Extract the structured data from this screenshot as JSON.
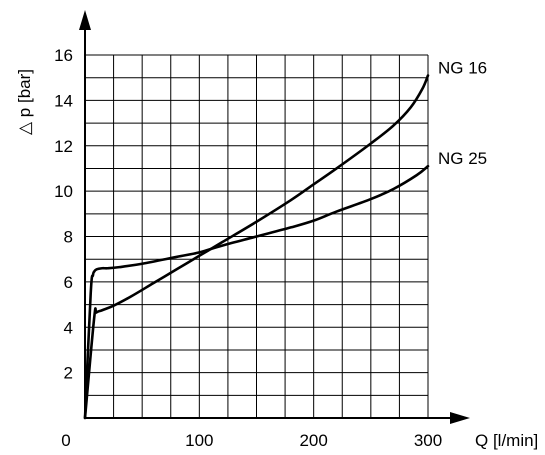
{
  "chart_data": {
    "type": "line",
    "ylabel": "△ p [bar]",
    "xlabel": "Q [l/min]",
    "xlim": [
      0,
      300
    ],
    "ylim": [
      0,
      16
    ],
    "x_ticks": [
      0,
      100,
      200,
      300
    ],
    "y_ticks": [
      2,
      4,
      6,
      8,
      10,
      12,
      14,
      16
    ],
    "grid": true,
    "series": [
      {
        "name": "NG 16",
        "x": [
          0,
          8,
          10,
          15,
          25,
          40,
          60,
          80,
          100,
          120,
          150,
          180,
          200,
          220,
          250,
          270,
          285,
          295,
          300
        ],
        "y": [
          0,
          4.4,
          4.65,
          4.75,
          4.95,
          5.35,
          5.95,
          6.55,
          7.15,
          7.75,
          8.65,
          9.6,
          10.3,
          11.0,
          12.1,
          12.9,
          13.7,
          14.5,
          15.1
        ]
      },
      {
        "name": "NG 25",
        "x": [
          0,
          5,
          7,
          8,
          10,
          15,
          20,
          30,
          50,
          80,
          100,
          120,
          150,
          180,
          200,
          220,
          250,
          270,
          290,
          300
        ],
        "y": [
          0,
          5.5,
          6.3,
          6.45,
          6.55,
          6.6,
          6.6,
          6.65,
          6.8,
          7.1,
          7.3,
          7.6,
          8.0,
          8.4,
          8.7,
          9.1,
          9.65,
          10.1,
          10.7,
          11.1
        ]
      }
    ]
  }
}
